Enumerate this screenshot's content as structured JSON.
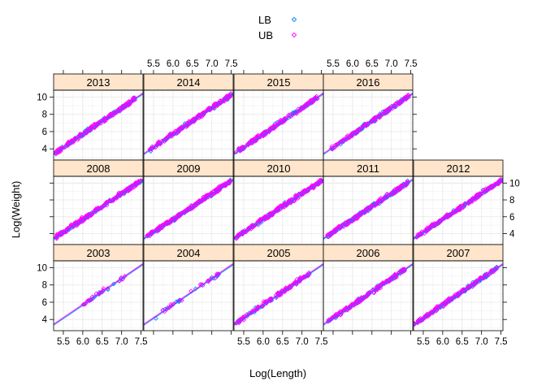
{
  "chart_data": {
    "type": "scatter",
    "layout": "lattice-panels",
    "xlabel": "Log(Length)",
    "ylabel": "Log(Weight)",
    "xlim": [
      5.25,
      7.55
    ],
    "ylim": [
      2.7,
      10.8
    ],
    "x_ticks": [
      "5.5",
      "6.0",
      "6.5",
      "7.0",
      "7.5"
    ],
    "y_ticks": [
      "4",
      "6",
      "8",
      "10"
    ],
    "grid": true,
    "legend": {
      "placement": "top-center",
      "items": [
        {
          "label": "LB",
          "color": "#0080ff",
          "marker": "diamond"
        },
        {
          "label": "UB",
          "color": "#ff00ff",
          "marker": "diamond"
        }
      ]
    },
    "strip_color": "#ffe5cc",
    "fit": {
      "slope": 3.05,
      "intercept": -12.6
    },
    "panels": [
      {
        "year": "2013",
        "row": 0,
        "col": 0,
        "x_range": [
          5.3,
          7.35
        ],
        "n_lb": 60,
        "n_ub": 200
      },
      {
        "year": "2014",
        "row": 0,
        "col": 1,
        "x_range": [
          5.4,
          7.5
        ],
        "n_lb": 60,
        "n_ub": 200
      },
      {
        "year": "2015",
        "row": 0,
        "col": 2,
        "x_range": [
          5.3,
          7.4
        ],
        "n_lb": 90,
        "n_ub": 160
      },
      {
        "year": "2016",
        "row": 0,
        "col": 3,
        "x_range": [
          5.45,
          7.45
        ],
        "n_lb": 70,
        "n_ub": 140
      },
      {
        "year": "2008",
        "row": 1,
        "col": 0,
        "x_range": [
          5.3,
          7.5
        ],
        "n_lb": 60,
        "n_ub": 220
      },
      {
        "year": "2009",
        "row": 1,
        "col": 1,
        "x_range": [
          5.3,
          7.5
        ],
        "n_lb": 60,
        "n_ub": 220
      },
      {
        "year": "2010",
        "row": 1,
        "col": 2,
        "x_range": [
          5.3,
          7.5
        ],
        "n_lb": 60,
        "n_ub": 240
      },
      {
        "year": "2011",
        "row": 1,
        "col": 3,
        "x_range": [
          5.35,
          7.45
        ],
        "n_lb": 140,
        "n_ub": 160
      },
      {
        "year": "2012",
        "row": 1,
        "col": 4,
        "x_range": [
          5.3,
          7.55
        ],
        "n_lb": 50,
        "n_ub": 220
      },
      {
        "year": "2003",
        "row": 2,
        "col": 0,
        "x_range": [
          6.0,
          7.1
        ],
        "n_lb": 10,
        "n_ub": 25
      },
      {
        "year": "2004",
        "row": 2,
        "col": 1,
        "x_range": [
          5.55,
          7.2
        ],
        "n_lb": 15,
        "n_ub": 25
      },
      {
        "year": "2005",
        "row": 2,
        "col": 2,
        "x_range": [
          5.3,
          7.2
        ],
        "n_lb": 40,
        "n_ub": 120
      },
      {
        "year": "2006",
        "row": 2,
        "col": 3,
        "x_range": [
          5.3,
          7.35
        ],
        "n_lb": 60,
        "n_ub": 150
      },
      {
        "year": "2007",
        "row": 2,
        "col": 4,
        "x_range": [
          5.25,
          7.4
        ],
        "n_lb": 100,
        "n_ub": 140
      }
    ]
  }
}
